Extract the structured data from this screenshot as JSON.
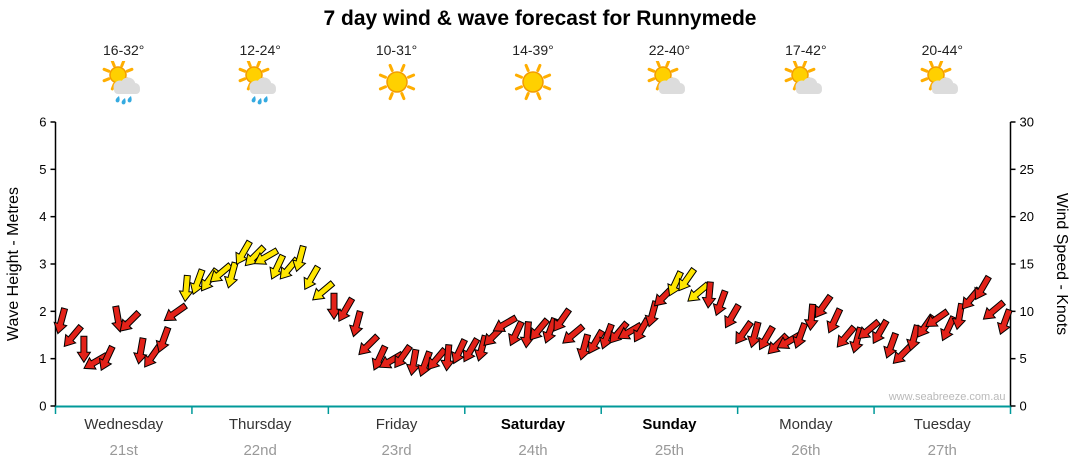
{
  "title": "7 day wind & wave forecast for Runnymede",
  "watermark": "www.seabreeze.com.au",
  "y_left": {
    "label": "Wave Height - Metres",
    "ticks": [
      0,
      1,
      2,
      3,
      4,
      5,
      6
    ]
  },
  "y_right": {
    "label": "Wind Speed - Knots",
    "ticks": [
      0,
      5,
      10,
      15,
      20,
      25,
      30
    ]
  },
  "days": [
    {
      "name": "Wednesday",
      "date": "21st",
      "temp": "16-32°",
      "icon": "sun-cloud-rain",
      "weekend": false
    },
    {
      "name": "Thursday",
      "date": "22nd",
      "temp": "12-24°",
      "icon": "sun-cloud-rain",
      "weekend": false
    },
    {
      "name": "Friday",
      "date": "23rd",
      "temp": "10-31°",
      "icon": "sun",
      "weekend": false
    },
    {
      "name": "Saturday",
      "date": "24th",
      "temp": "14-39°",
      "icon": "sun",
      "weekend": true
    },
    {
      "name": "Sunday",
      "date": "25th",
      "temp": "22-40°",
      "icon": "sun-cloud",
      "weekend": true
    },
    {
      "name": "Monday",
      "date": "26th",
      "temp": "17-42°",
      "icon": "sun-cloud",
      "weekend": false
    },
    {
      "name": "Tuesday",
      "date": "27th",
      "temp": "20-44°",
      "icon": "sun-cloud",
      "weekend": false
    }
  ],
  "chart_data": {
    "type": "wind-arrows",
    "title": "7 day wind & wave forecast for Runnymede",
    "x_unit": "2-hour steps across 7 days (12 points per day)",
    "categories": [
      "Wednesday 21st",
      "Thursday 22nd",
      "Friday 23rd",
      "Saturday 24th",
      "Sunday 25th",
      "Monday 26th",
      "Tuesday 27th"
    ],
    "ylim_left_metres": [
      0,
      6
    ],
    "ylim_right_knots": [
      0,
      30
    ],
    "grid": false,
    "color_rule": {
      "red": "wind < 12 knots",
      "yellow": "wind >= 12 knots"
    },
    "wind_speed_knots": [
      9.5,
      8,
      6,
      4.5,
      5.5,
      10,
      9,
      5,
      4.5,
      7,
      10,
      12,
      12.5,
      13.5,
      15,
      14.5,
      16,
      15.5,
      16,
      15,
      14,
      14.5,
      13,
      12.5,
      11,
      10,
      8.5,
      7,
      6,
      5,
      4.5,
      4,
      4.5,
      5,
      4.5,
      5,
      6,
      7,
      8,
      8.5,
      7.5,
      8,
      8.5,
      7.5,
      8,
      7,
      6.5,
      7,
      7,
      7.5,
      8.5,
      9,
      10,
      11,
      12.5,
      13.5,
      12,
      11,
      10,
      9.5,
      8.5,
      8,
      7,
      6.5,
      7.5,
      8,
      9,
      9.5,
      8.5,
      7.5,
      7,
      7.5,
      7.5,
      7,
      6.5,
      7.5,
      8,
      9,
      8.5,
      9.5,
      10.5,
      11.5,
      10,
      9.5
    ],
    "wind_dir_deg": [
      195,
      220,
      180,
      240,
      205,
      170,
      225,
      190,
      215,
      200,
      235,
      185,
      200,
      215,
      230,
      195,
      210,
      225,
      240,
      205,
      220,
      195,
      210,
      230,
      180,
      210,
      195,
      225,
      205,
      240,
      215,
      190,
      200,
      220,
      185,
      205,
      210,
      195,
      225,
      240,
      205,
      185,
      220,
      200,
      215,
      230,
      195,
      210,
      200,
      220,
      240,
      210,
      195,
      225,
      205,
      215,
      230,
      185,
      200,
      210,
      215,
      195,
      210,
      225,
      240,
      200,
      185,
      215,
      205,
      220,
      195,
      230,
      210,
      200,
      225,
      195,
      215,
      235,
      205,
      190,
      220,
      210,
      230,
      200
    ]
  },
  "colors": {
    "arrow_red": "#e32219",
    "arrow_yellow": "#ffe600",
    "arrow_outline": "#000000",
    "axis": "#000000",
    "baseline_teal": "#009999",
    "watermark": "#b9b9b9",
    "sun": "#ffd000",
    "sun_stroke": "#f39c00",
    "ray": "#ffae00",
    "cloud": "#dcdcdc",
    "rain": "#35aae0"
  }
}
